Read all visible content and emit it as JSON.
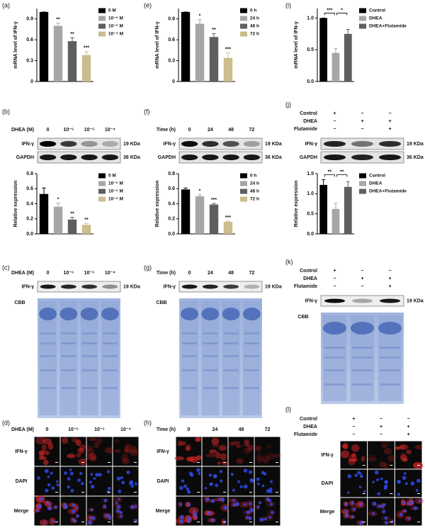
{
  "chart_data": [
    {
      "type": "bar",
      "label": "(a)",
      "ylabel": "mRNA level of IFN-γ",
      "categories": [
        "0 M",
        "10⁻⁶ M",
        "10⁻⁵ M",
        "10⁻⁴ M"
      ],
      "values": [
        1.0,
        0.8,
        0.58,
        0.38
      ],
      "errors": [
        0,
        0.04,
        0.05,
        0.05
      ],
      "annotations": [
        null,
        "**",
        "**",
        "***"
      ],
      "colors": [
        "#000000",
        "#a6a6a6",
        "#5e5e5e",
        "#cbbd8c"
      ],
      "ylim": [
        0,
        1.05
      ],
      "yticks": [
        0,
        0.3,
        0.6,
        0.9
      ]
    },
    {
      "type": "bar",
      "label": "(e)",
      "ylabel": "mRNA level of IFN-γ",
      "categories": [
        "0 h",
        "24 h",
        "48 h",
        "72 h"
      ],
      "values": [
        1.0,
        0.83,
        0.64,
        0.34
      ],
      "errors": [
        0,
        0.06,
        0.05,
        0.07
      ],
      "annotations": [
        null,
        "*",
        "**",
        "***"
      ],
      "colors": [
        "#000000",
        "#a6a6a6",
        "#5e5e5e",
        "#cbbd8c"
      ],
      "ylim": [
        0,
        1.05
      ],
      "yticks": [
        0,
        0.3,
        0.6,
        0.9
      ]
    },
    {
      "type": "bar",
      "label": "(i)",
      "ylabel": "mRNA level of IFN-γ",
      "categories": [
        "Control",
        "DHEA",
        "DHEA+Flutamide"
      ],
      "values": [
        1.0,
        0.45,
        0.75
      ],
      "errors": [
        0,
        0.07,
        0.07
      ],
      "bracket_labels": [
        "***",
        "*"
      ],
      "colors": [
        "#000000",
        "#a6a6a6",
        "#5e5e5e"
      ],
      "ylim": [
        0,
        1.15
      ],
      "yticks": [
        {
          "value": 0,
          "label": "0.0"
        },
        {
          "value": 0.5,
          "label": "0.5"
        },
        {
          "value": 1,
          "label": "1.0"
        }
      ]
    },
    {
      "type": "bar",
      "ylabel": "Relative expression",
      "categories": [
        "0 M",
        "10⁻⁶ M",
        "10⁻⁵ M",
        "10⁻⁴ M"
      ],
      "values": [
        0.53,
        0.36,
        0.19,
        0.12
      ],
      "errors": [
        0.08,
        0.05,
        0.03,
        0.02
      ],
      "annotations": [
        null,
        "*",
        "**",
        "**"
      ],
      "colors": [
        "#000000",
        "#a6a6a6",
        "#5e5e5e",
        "#cbbd8c"
      ],
      "ylim": [
        0,
        0.8
      ],
      "yticks": [
        {
          "value": 0,
          "label": "0.0"
        },
        0.2,
        0.4,
        0.6,
        0.8
      ]
    },
    {
      "type": "bar",
      "ylabel": "Relative expression",
      "categories": [
        "0 h",
        "24 h",
        "48 h",
        "72 h"
      ],
      "values": [
        0.59,
        0.5,
        0.39,
        0.16
      ],
      "errors": [
        0.02,
        0.02,
        0.015,
        0.01
      ],
      "annotations": [
        null,
        "*",
        "***",
        "***"
      ],
      "colors": [
        "#000000",
        "#a6a6a6",
        "#5e5e5e",
        "#cbbd8c"
      ],
      "ylim": [
        0,
        0.8
      ],
      "yticks": [
        {
          "value": 0,
          "label": "0.0"
        },
        0.2,
        0.4,
        0.6,
        0.8
      ]
    },
    {
      "type": "bar",
      "ylabel": "Relative expression",
      "categories": [
        "Control",
        "DHEA",
        "DHEA+Flutamide"
      ],
      "values": [
        1.22,
        0.62,
        1.17
      ],
      "errors": [
        0.13,
        0.14,
        0.13
      ],
      "bracket_labels": [
        "**",
        "**"
      ],
      "colors": [
        "#000000",
        "#a6a6a6",
        "#5e5e5e"
      ],
      "ylim": [
        0,
        1.5
      ],
      "yticks": [
        {
          "value": 0,
          "label": "0.0"
        },
        {
          "value": 0.5,
          "label": "0.5"
        },
        {
          "value": 1,
          "label": "1.0"
        },
        {
          "value": 1.5,
          "label": "1.5"
        }
      ]
    }
  ],
  "blots": [
    {
      "label": "(b)",
      "treatment": "DHEA (M)",
      "lanes": [
        "0",
        "10⁻⁶",
        "10⁻⁵",
        "10⁻⁴"
      ],
      "rows": [
        {
          "name": "IFN-γ",
          "size": "19 KDa"
        },
        {
          "name": "GAPDH",
          "size": "36 KDa"
        }
      ]
    },
    {
      "label": "(f)",
      "treatment": "Time (h)",
      "lanes": [
        "0",
        "24",
        "48",
        "72"
      ],
      "rows": [
        {
          "name": "IFN-γ",
          "size": "19 KDa"
        },
        {
          "name": "GAPDH",
          "size": "36 KDa"
        }
      ]
    },
    {
      "label": "(j)",
      "conditions": [
        {
          "name": "Control",
          "signs": [
            "+",
            "−",
            "−"
          ]
        },
        {
          "name": "DHEA",
          "signs": [
            "−",
            "+",
            "+"
          ]
        },
        {
          "name": "Flutamide",
          "signs": [
            "−",
            "−",
            "+"
          ]
        }
      ],
      "rows": [
        {
          "name": "IFN-γ",
          "size": "19 KDa"
        },
        {
          "name": "GAPDH",
          "size": "36 KDa"
        }
      ]
    }
  ],
  "gels": [
    {
      "label": "(c)",
      "treatment": "DHEA (M)",
      "lanes": [
        "0",
        "10⁻⁶",
        "10⁻⁵",
        "10⁻⁴"
      ],
      "row": {
        "name": "IFN-γ",
        "size": "19 KDa"
      },
      "stain": "CBB"
    },
    {
      "label": "(g)",
      "treatment": "Time (h)",
      "lanes": [
        "0",
        "24",
        "48",
        "72"
      ],
      "row": {
        "name": "IFN-γ",
        "size": "19 KDa"
      },
      "stain": "CBB"
    },
    {
      "label": "(k)",
      "conditions": [
        {
          "name": "Control",
          "signs": [
            "+",
            "−",
            "−"
          ]
        },
        {
          "name": "DHEA",
          "signs": [
            "−",
            "+",
            "+"
          ]
        },
        {
          "name": "Flutamide",
          "signs": [
            "−",
            "−",
            "+"
          ]
        }
      ],
      "row": {
        "name": "IFN-γ",
        "size": "19 KDa"
      },
      "stain": "CBB"
    }
  ],
  "microscopy": [
    {
      "label": "(d)",
      "treatment": "DHEA (M)",
      "lanes": [
        "0",
        "10⁻⁶",
        "10⁻⁵",
        "10⁻⁴"
      ],
      "rows": [
        "IFN-γ",
        "DAPI",
        "Merge"
      ]
    },
    {
      "label": "(h)",
      "treatment": "Time (h)",
      "lanes": [
        "0",
        "24",
        "48",
        "72"
      ],
      "rows": [
        "IFN-γ",
        "DAPI",
        "Merge"
      ]
    },
    {
      "label": "(l)",
      "conditions": [
        {
          "name": "Control",
          "signs": [
            "+",
            "−",
            "−"
          ]
        },
        {
          "name": "DHEA",
          "signs": [
            "−",
            "+",
            "+"
          ]
        },
        {
          "name": "Flutamide",
          "signs": [
            "−",
            "−",
            "+"
          ]
        }
      ],
      "rows": [
        "IFN-γ",
        "DAPI",
        "Merge"
      ]
    }
  ]
}
